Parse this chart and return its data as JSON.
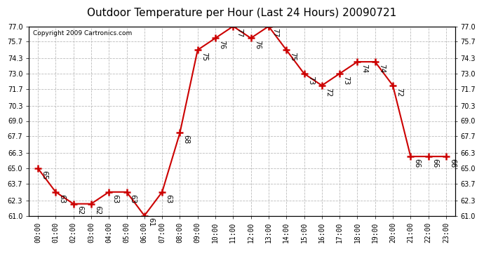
{
  "title": "Outdoor Temperature per Hour (Last 24 Hours) 20090721",
  "copyright": "Copyright 2009 Cartronics.com",
  "hours": [
    "00:00",
    "01:00",
    "02:00",
    "03:00",
    "04:00",
    "05:00",
    "06:00",
    "07:00",
    "08:00",
    "09:00",
    "10:00",
    "11:00",
    "12:00",
    "13:00",
    "14:00",
    "15:00",
    "16:00",
    "17:00",
    "18:00",
    "19:00",
    "20:00",
    "21:00",
    "22:00",
    "23:00"
  ],
  "temps": [
    65,
    63,
    62,
    62,
    63,
    63,
    61,
    63,
    68,
    75,
    76,
    77,
    76,
    77,
    75,
    73,
    72,
    73,
    74,
    74,
    72,
    66,
    66,
    66
  ],
  "ylim_min": 61.0,
  "ylim_max": 77.0,
  "yticks": [
    61.0,
    62.3,
    63.7,
    65.0,
    66.3,
    67.7,
    69.0,
    70.3,
    71.7,
    73.0,
    74.3,
    75.7,
    77.0
  ],
  "line_color": "#cc0000",
  "marker_color": "#cc0000",
  "bg_color": "#ffffff",
  "grid_color": "#bbbbbb",
  "title_fontsize": 11,
  "label_fontsize": 7,
  "annotation_fontsize": 7.5,
  "copyright_fontsize": 6.5
}
